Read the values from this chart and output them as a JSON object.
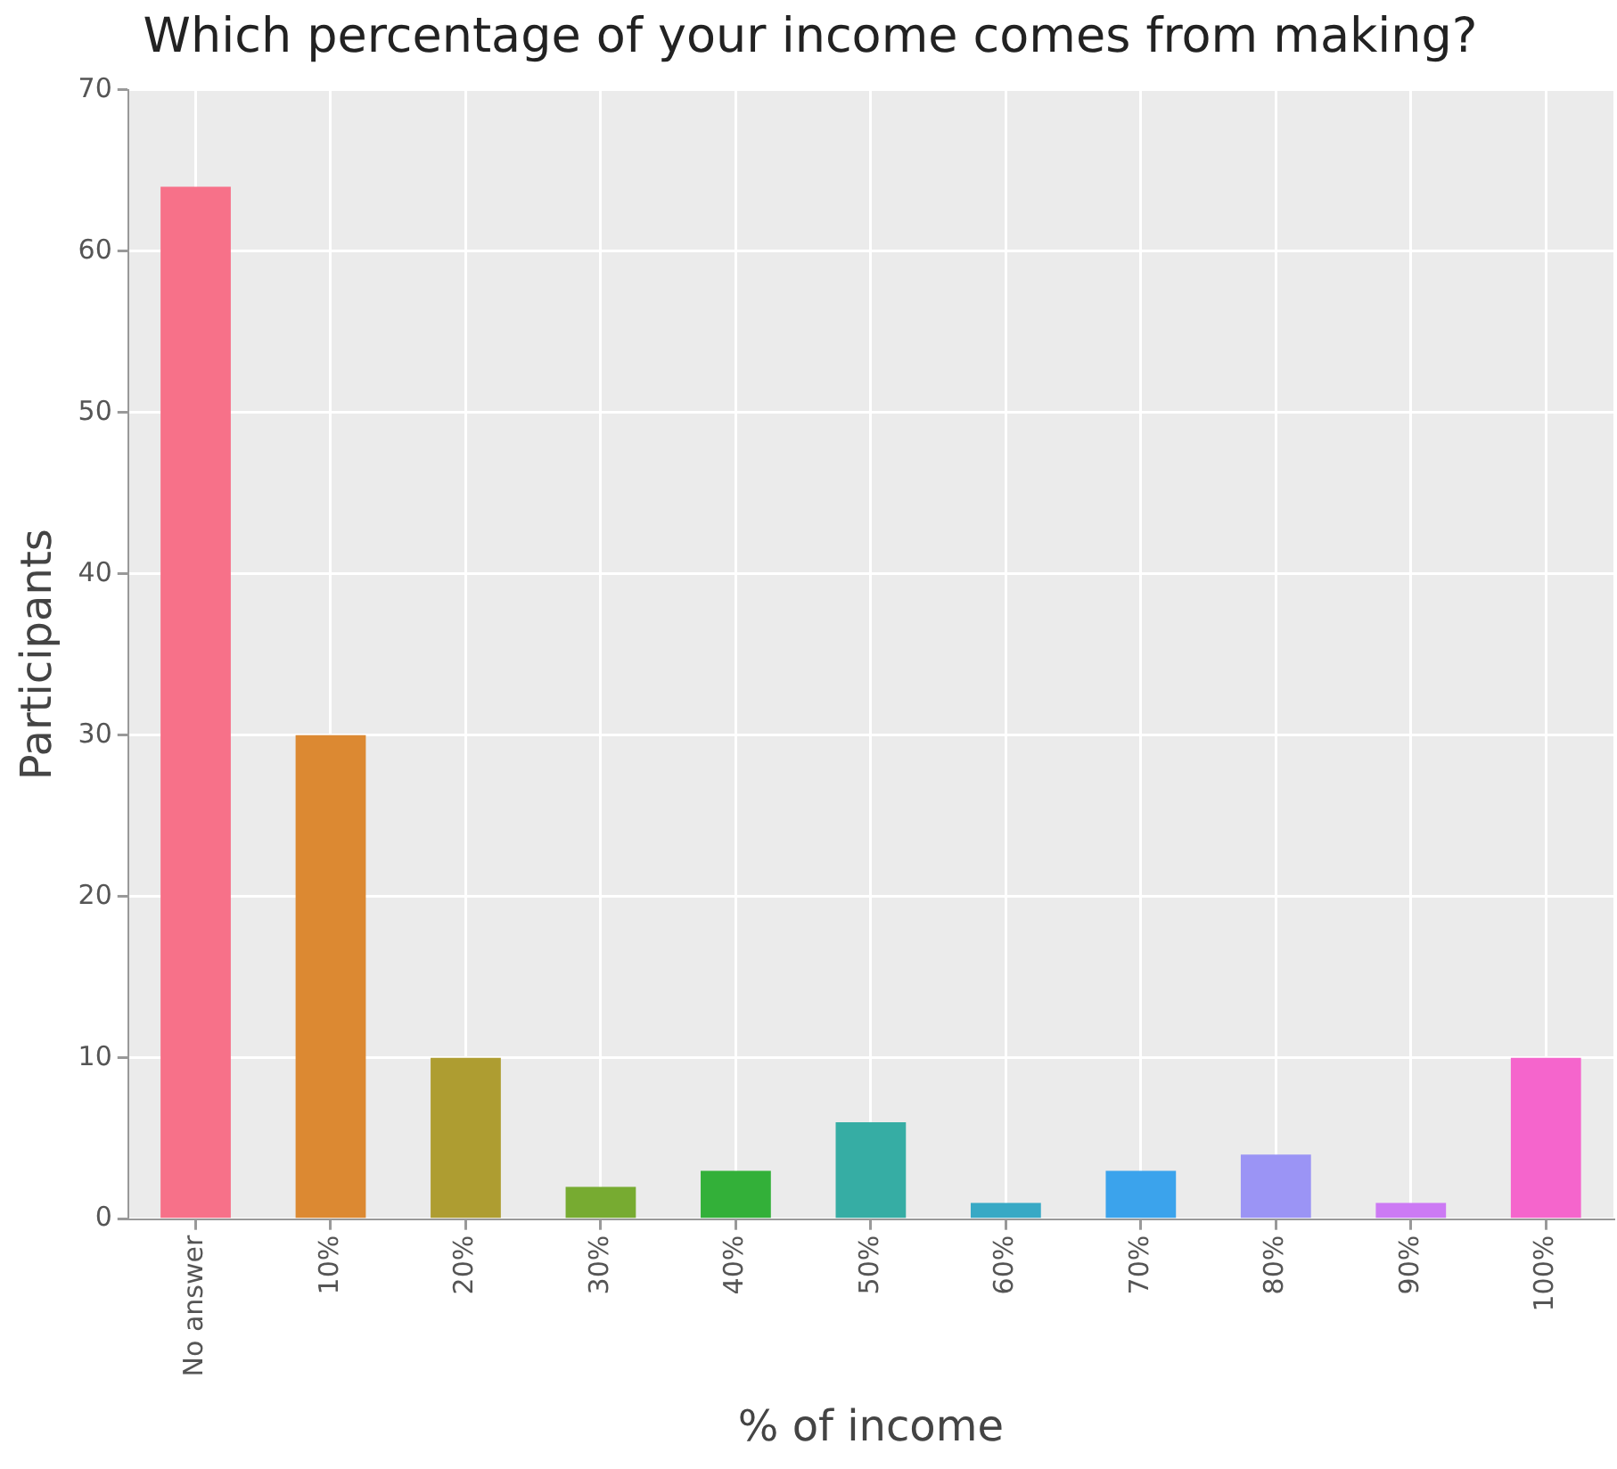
{
  "chart_data": {
    "type": "bar",
    "title": "Which percentage of your income comes from making?",
    "xlabel": "% of income",
    "ylabel": "Participants",
    "categories": [
      "No answer",
      "10%",
      "20%",
      "30%",
      "40%",
      "50%",
      "60%",
      "70%",
      "80%",
      "90%",
      "100%"
    ],
    "values": [
      64,
      30,
      10,
      2,
      3,
      6,
      1,
      3,
      4,
      1,
      10
    ],
    "colors": [
      "#f77189",
      "#dc8932",
      "#ae9d31",
      "#77ab31",
      "#33b039",
      "#36ada4",
      "#38a9c5",
      "#3ba3ec",
      "#9b94f5",
      "#cc7af4",
      "#f565cc"
    ],
    "ylim": [
      0,
      70
    ],
    "yticks": [
      0,
      10,
      20,
      30,
      40,
      50,
      60,
      70
    ],
    "grid": true,
    "legend": false
  }
}
